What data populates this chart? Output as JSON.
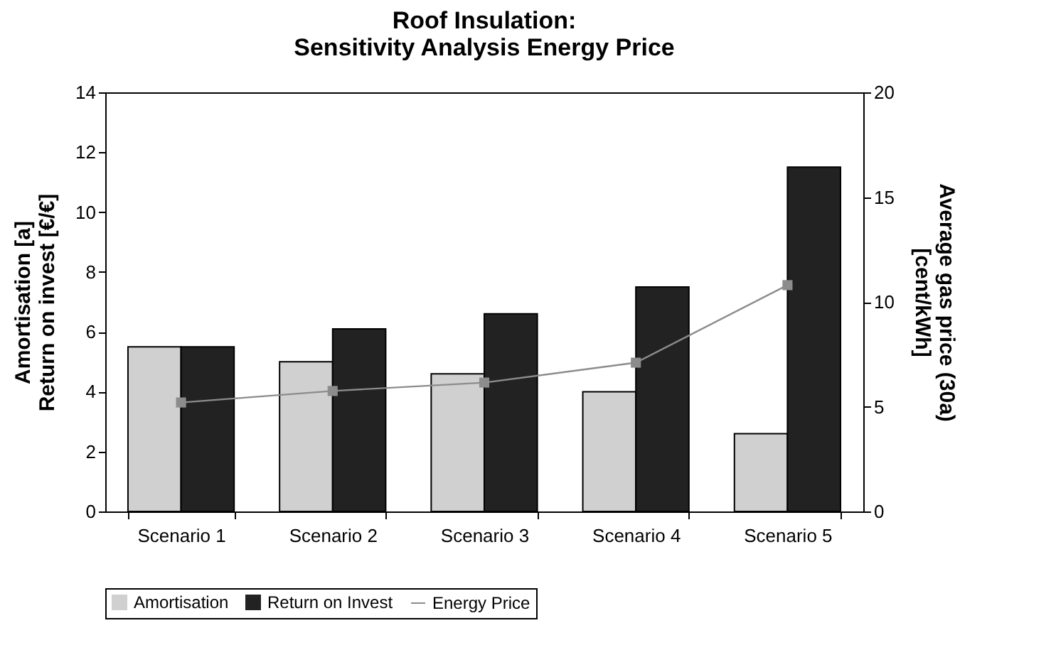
{
  "chart_data": {
    "type": "bar",
    "title": "Roof Insulation:\nSensitivity Analysis Energy Price",
    "ylabel": "Amortisation [a]\nReturn on invest [€/€]",
    "y2label": "Average gas price (30a)\n[cent/kWh]",
    "categories": [
      "Scenario 1",
      "Scenario 2",
      "Scenario 3",
      "Scenario 4",
      "Scenario 5"
    ],
    "series": [
      {
        "name": "Amortisation",
        "color": "#d0d0d0",
        "values": [
          5.5,
          5.0,
          4.6,
          4.0,
          2.6
        ]
      },
      {
        "name": "Return on Invest",
        "color": "#222222",
        "values": [
          5.5,
          6.1,
          6.6,
          7.5,
          11.5
        ]
      },
      {
        "name": "Energy Price",
        "type": "line",
        "axis": "y2",
        "color": "#8c8c8c",
        "marker": "square",
        "line_style": "solid",
        "values": [
          5.2,
          5.75,
          6.15,
          7.1,
          10.8
        ]
      }
    ],
    "ylim": [
      0,
      14
    ],
    "yticks": [
      0,
      2,
      4,
      6,
      8,
      10,
      12,
      14
    ],
    "y2lim": [
      0,
      20
    ],
    "y2ticks": [
      0,
      5,
      10,
      15,
      20
    ],
    "grid": false,
    "legend": "bottom"
  }
}
